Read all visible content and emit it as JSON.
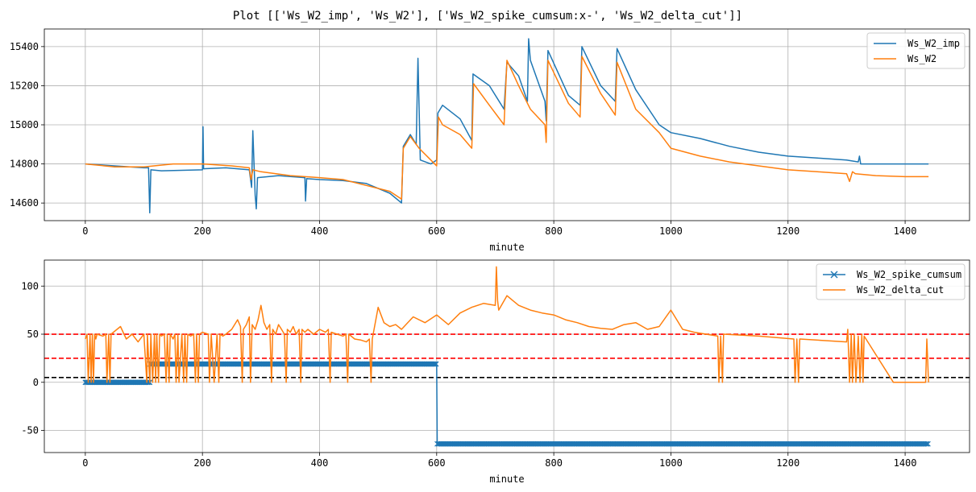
{
  "title": "Plot [['Ws_W2_imp', 'Ws_W2'], ['Ws_W2_spike_cumsum:x-', 'Ws_W2_delta_cut']]",
  "chart_data": [
    {
      "type": "line",
      "xlabel": "minute",
      "ylabel": "",
      "xlim": [
        -70,
        1510
      ],
      "ylim": [
        14510,
        15490
      ],
      "xticks": [
        0,
        200,
        400,
        600,
        800,
        1000,
        1200,
        1400
      ],
      "yticks": [
        14600,
        14800,
        15000,
        15200,
        15400
      ],
      "grid": true,
      "legend_position": "upper right",
      "series": [
        {
          "name": "Ws_W2_imp",
          "color": "#1f77b4",
          "x": [
            0,
            50,
            100,
            108,
            110,
            112,
            130,
            200,
            201,
            202,
            240,
            280,
            284,
            286,
            290,
            292,
            294,
            330,
            375,
            376,
            378,
            400,
            440,
            480,
            520,
            540,
            543,
            555,
            565,
            568,
            572,
            590,
            600,
            602,
            610,
            640,
            660,
            662,
            690,
            715,
            720,
            740,
            755,
            757,
            760,
            785,
            787,
            790,
            825,
            845,
            848,
            880,
            905,
            908,
            940,
            980,
            1000,
            1050,
            1100,
            1150,
            1200,
            1250,
            1300,
            1320,
            1322,
            1324,
            1340,
            1400,
            1440
          ],
          "values": [
            14800,
            14790,
            14780,
            14780,
            14550,
            14770,
            14765,
            14770,
            14990,
            14775,
            14780,
            14770,
            14680,
            14970,
            14640,
            14570,
            14730,
            14740,
            14730,
            14610,
            14725,
            14720,
            14715,
            14700,
            14650,
            14600,
            14890,
            14950,
            14900,
            15340,
            14820,
            14800,
            14820,
            15060,
            15100,
            15030,
            14920,
            15260,
            15200,
            15080,
            15320,
            15250,
            15120,
            15440,
            15330,
            15120,
            15020,
            15380,
            15150,
            15100,
            15400,
            15200,
            15120,
            15390,
            15180,
            15000,
            14960,
            14930,
            14890,
            14860,
            14840,
            14830,
            14820,
            14810,
            14840,
            14800,
            14800,
            14800,
            14800
          ]
        },
        {
          "name": "Ws_W2",
          "color": "#ff7f0e",
          "x": [
            0,
            50,
            100,
            150,
            200,
            250,
            280,
            283,
            286,
            300,
            350,
            400,
            440,
            480,
            520,
            540,
            543,
            555,
            570,
            590,
            600,
            603,
            610,
            640,
            660,
            663,
            690,
            715,
            720,
            740,
            760,
            785,
            787,
            790,
            825,
            845,
            848,
            880,
            905,
            908,
            940,
            980,
            1000,
            1050,
            1100,
            1150,
            1200,
            1250,
            1300,
            1305,
            1310,
            1315,
            1350,
            1400,
            1440
          ],
          "values": [
            14800,
            14785,
            14785,
            14800,
            14800,
            14790,
            14780,
            14720,
            14770,
            14760,
            14740,
            14730,
            14720,
            14690,
            14660,
            14620,
            14880,
            14940,
            14880,
            14820,
            14790,
            15040,
            15000,
            14950,
            14880,
            15210,
            15100,
            15000,
            15330,
            15200,
            15080,
            15000,
            14910,
            15330,
            15110,
            15040,
            15350,
            15160,
            15050,
            15320,
            15080,
            14960,
            14880,
            14840,
            14810,
            14790,
            14770,
            14760,
            14750,
            14710,
            14760,
            14750,
            14740,
            14735,
            14735
          ]
        }
      ]
    },
    {
      "type": "line",
      "xlabel": "minute",
      "ylabel": "",
      "xlim": [
        -70,
        1510
      ],
      "ylim": [
        -73,
        127
      ],
      "xticks": [
        0,
        200,
        400,
        600,
        800,
        1000,
        1200,
        1400
      ],
      "yticks": [
        -50,
        0,
        50,
        100
      ],
      "grid": true,
      "legend_position": "upper right",
      "hlines": [
        {
          "y": 50,
          "color": "#ff0000",
          "style": "dashed"
        },
        {
          "y": 25,
          "color": "#ff0000",
          "style": "dashed"
        },
        {
          "y": 5,
          "color": "#000000",
          "style": "dashed"
        }
      ],
      "series": [
        {
          "name": "Ws_W2_spike_cumsum",
          "color": "#1f77b4",
          "marker": "x",
          "x": [
            0,
            110,
            111,
            600,
            601,
            1440
          ],
          "values": [
            0,
            0,
            19,
            19,
            -64,
            -64
          ]
        },
        {
          "name": "Ws_W2_delta_cut",
          "color": "#ff7f0e",
          "x": [
            0,
            3,
            5,
            8,
            10,
            12,
            14,
            16,
            18,
            20,
            30,
            35,
            37,
            40,
            42,
            44,
            60,
            70,
            80,
            90,
            100,
            105,
            106,
            110,
            112,
            115,
            118,
            120,
            122,
            125,
            127,
            130,
            135,
            138,
            140,
            143,
            145,
            150,
            153,
            155,
            158,
            160,
            165,
            168,
            170,
            173,
            175,
            180,
            185,
            188,
            190,
            193,
            195,
            200,
            210,
            212,
            215,
            220,
            225,
            228,
            230,
            235,
            240,
            250,
            260,
            265,
            268,
            270,
            275,
            280,
            282,
            285,
            290,
            295,
            300,
            305,
            310,
            315,
            318,
            320,
            325,
            330,
            335,
            340,
            343,
            345,
            350,
            355,
            360,
            365,
            368,
            370,
            375,
            380,
            390,
            400,
            410,
            415,
            418,
            420,
            430,
            440,
            445,
            448,
            450,
            460,
            470,
            480,
            485,
            488,
            490,
            500,
            510,
            520,
            530,
            540,
            560,
            580,
            600,
            620,
            640,
            660,
            680,
            700,
            702,
            704,
            706,
            720,
            740,
            760,
            780,
            800,
            820,
            840,
            860,
            880,
            900,
            920,
            940,
            960,
            980,
            1000,
            1020,
            1040,
            1060,
            1080,
            1082,
            1085,
            1088,
            1090,
            1150,
            1210,
            1212,
            1215,
            1218,
            1220,
            1300,
            1302,
            1305,
            1308,
            1310,
            1313,
            1316,
            1320,
            1323,
            1326,
            1328,
            1330,
            1380,
            1420,
            1435,
            1437,
            1440
          ],
          "values": [
            45,
            50,
            0,
            50,
            0,
            50,
            0,
            50,
            45,
            50,
            48,
            50,
            0,
            50,
            0,
            50,
            58,
            45,
            50,
            42,
            50,
            0,
            50,
            0,
            50,
            0,
            50,
            0,
            50,
            0,
            50,
            48,
            50,
            0,
            50,
            0,
            50,
            45,
            50,
            0,
            50,
            0,
            50,
            0,
            50,
            0,
            50,
            48,
            50,
            0,
            50,
            0,
            50,
            52,
            50,
            0,
            50,
            0,
            50,
            0,
            50,
            48,
            50,
            55,
            65,
            58,
            0,
            55,
            60,
            68,
            0,
            60,
            55,
            65,
            80,
            62,
            55,
            60,
            0,
            55,
            50,
            60,
            55,
            50,
            0,
            55,
            52,
            58,
            50,
            55,
            0,
            55,
            52,
            55,
            50,
            55,
            52,
            55,
            0,
            52,
            50,
            48,
            50,
            0,
            50,
            45,
            44,
            42,
            45,
            0,
            45,
            78,
            62,
            58,
            60,
            55,
            68,
            62,
            70,
            60,
            72,
            78,
            82,
            80,
            120,
            85,
            75,
            90,
            80,
            75,
            72,
            70,
            65,
            62,
            58,
            56,
            55,
            60,
            62,
            55,
            58,
            75,
            55,
            52,
            50,
            48,
            0,
            48,
            0,
            50,
            48,
            45,
            0,
            45,
            0,
            45,
            42,
            55,
            0,
            50,
            0,
            50,
            0,
            48,
            0,
            50,
            0,
            48,
            0,
            0,
            0,
            45,
            0
          ]
        }
      ]
    }
  ]
}
